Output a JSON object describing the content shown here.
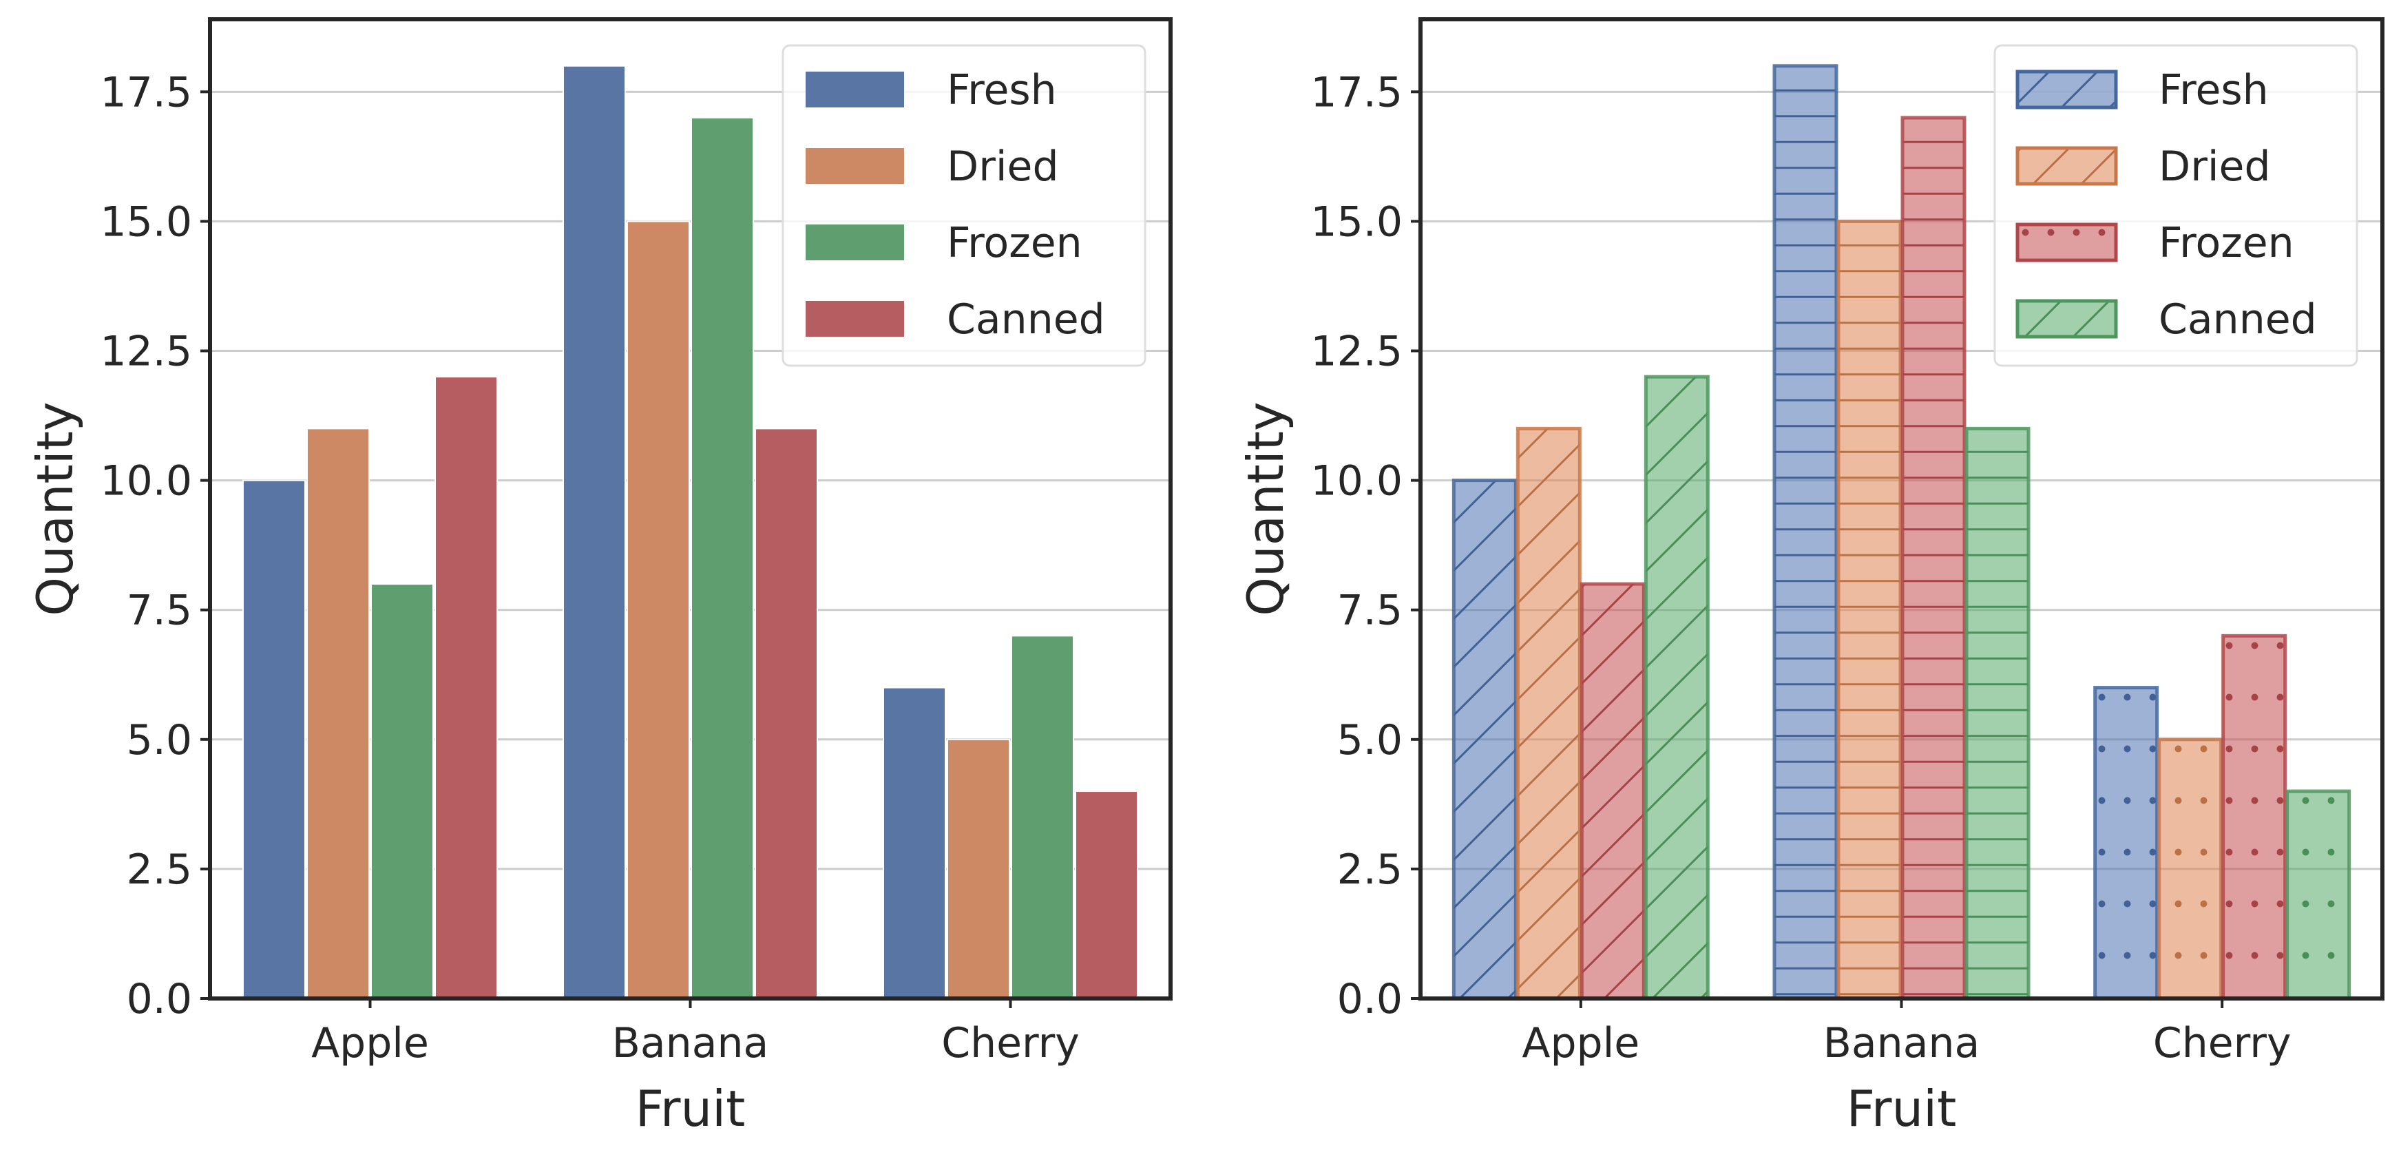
{
  "chart_data": [
    {
      "type": "bar",
      "variant": "plain",
      "categories": [
        "Apple",
        "Banana",
        "Cherry"
      ],
      "series": [
        {
          "name": "Fresh",
          "values": [
            10,
            18,
            6
          ],
          "color": "#5975a4",
          "hatch": "none"
        },
        {
          "name": "Dried",
          "values": [
            11,
            15,
            5
          ],
          "color": "#cc8963",
          "hatch": "none"
        },
        {
          "name": "Frozen",
          "values": [
            8,
            17,
            7
          ],
          "color": "#5f9e6e",
          "hatch": "none"
        },
        {
          "name": "Canned",
          "values": [
            12,
            11,
            4
          ],
          "color": "#b55d60",
          "hatch": "none"
        }
      ],
      "xlabel": "Fruit",
      "ylabel": "Quantity",
      "ylim": [
        0,
        18.9
      ],
      "yticks": [
        "0.0",
        "2.5",
        "5.0",
        "7.5",
        "10.0",
        "12.5",
        "15.0",
        "17.5"
      ],
      "grid": "horizontal",
      "legend": "top-right"
    },
    {
      "type": "bar",
      "variant": "hatched",
      "categories": [
        "Apple",
        "Banana",
        "Cherry"
      ],
      "series": [
        {
          "name": "Fresh",
          "values": [
            10,
            18,
            6
          ],
          "color": "#4c72b0",
          "hatch": "diagonal"
        },
        {
          "name": "Dried",
          "values": [
            11,
            15,
            5
          ],
          "color": "#dd8452",
          "hatch": "diagonal"
        },
        {
          "name": "Frozen",
          "values": [
            8,
            17,
            7
          ],
          "color": "#c44e52",
          "hatch": "dots"
        },
        {
          "name": "Canned",
          "values": [
            12,
            11,
            4
          ],
          "color": "#55a868",
          "hatch": "diagonal"
        }
      ],
      "category_hatches": [
        "diagonal",
        "horizontal",
        "dots"
      ],
      "xlabel": "Fruit",
      "ylabel": "Quantity",
      "ylim": [
        0,
        18.9
      ],
      "yticks": [
        "0.0",
        "2.5",
        "5.0",
        "7.5",
        "10.0",
        "12.5",
        "15.0",
        "17.5"
      ],
      "grid": "horizontal",
      "legend": "top-right"
    }
  ]
}
